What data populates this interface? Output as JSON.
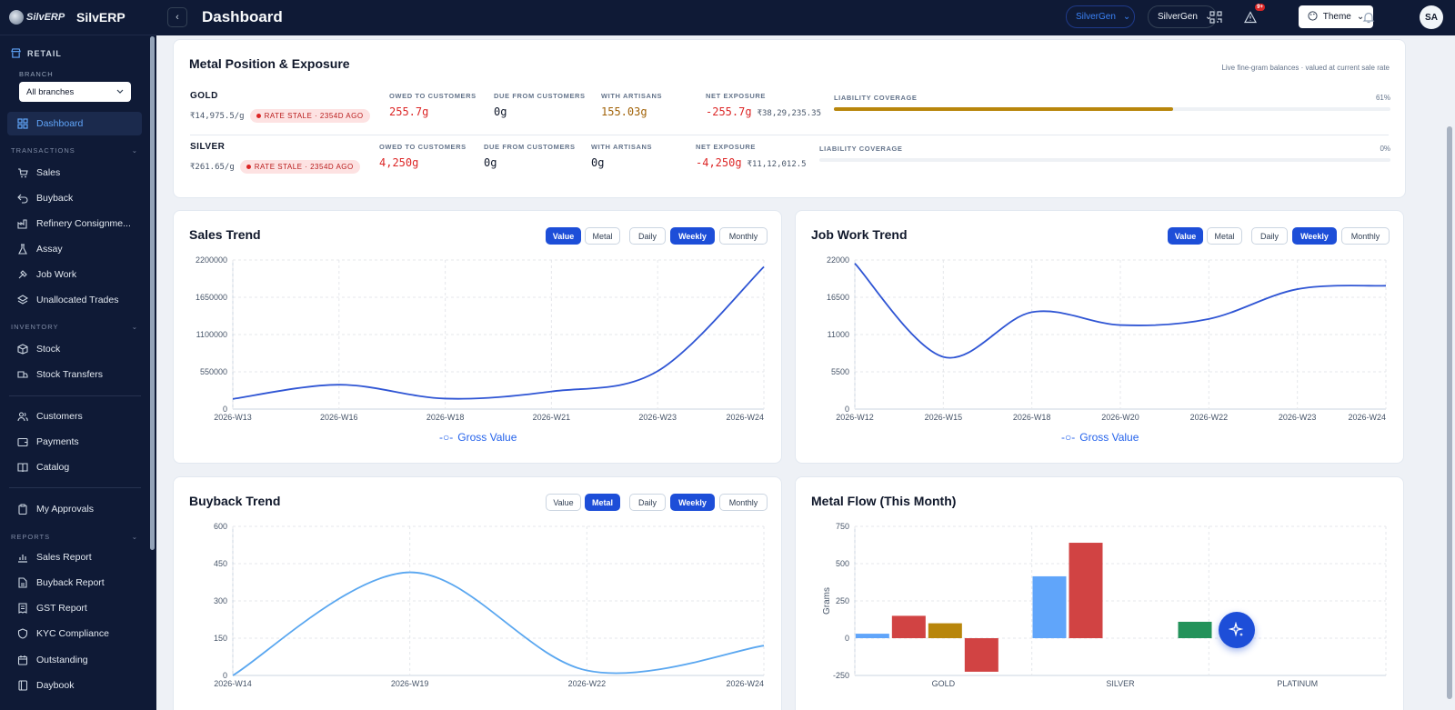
{
  "brand": {
    "logo_text": "SilvERP",
    "name": "SilvERP"
  },
  "header": {
    "title": "Dashboard",
    "org_switch": "SilverGen",
    "entity_switch": "SilverGen",
    "notif_count": "9+",
    "theme_label": "Theme",
    "avatar_initials": "SA"
  },
  "sidebar": {
    "retail_label": "RETAIL",
    "branch_label": "BRANCH",
    "branch_value": "All branches",
    "sections": {
      "transactions": "TRANSACTIONS",
      "inventory": "INVENTORY",
      "reports": "REPORTS"
    },
    "items": {
      "dashboard": "Dashboard",
      "sales": "Sales",
      "buyback": "Buyback",
      "refinery": "Refinery Consignme...",
      "assay": "Assay",
      "jobwork": "Job Work",
      "unallocated": "Unallocated Trades",
      "stock": "Stock",
      "transfers": "Stock Transfers",
      "customers": "Customers",
      "payments": "Payments",
      "catalog": "Catalog",
      "approvals": "My Approvals",
      "sales_report": "Sales Report",
      "buyback_report": "Buyback Report",
      "gst_report": "GST Report",
      "kyc": "KYC Compliance",
      "outstanding": "Outstanding",
      "daybook": "Daybook"
    }
  },
  "metal": {
    "title": "Metal Position & Exposure",
    "subtitle": "Live fine-gram balances · valued at current sale rate",
    "labels": {
      "owed": "OWED TO CUSTOMERS",
      "due": "DUE FROM CUSTOMERS",
      "artisans": "WITH ARTISANS",
      "net": "NET EXPOSURE",
      "coverage": "LIABILITY COVERAGE"
    },
    "rows": [
      {
        "name": "GOLD",
        "rate": "₹14,975.5/g",
        "stale": "RATE STALE · 2354D AGO",
        "owed": "255.7g",
        "due": "0g",
        "artisans": "155.03g",
        "net": "-255.7g",
        "net_value": "₹38,29,235.35",
        "coverage_pct": "61%",
        "coverage": 0.61
      },
      {
        "name": "SILVER",
        "rate": "₹261.65/g",
        "stale": "RATE STALE · 2354D AGO",
        "owed": "4,250g",
        "due": "0g",
        "artisans": "0g",
        "net": "-4,250g",
        "net_value": "₹11,12,012.5",
        "coverage_pct": "0%",
        "coverage": 0
      }
    ]
  },
  "toggles": {
    "value": "Value",
    "metal": "Metal",
    "daily": "Daily",
    "weekly": "Weekly",
    "monthly": "Monthly"
  },
  "chart_data": [
    {
      "type": "line",
      "title": "Sales Trend",
      "x_labels": [
        "2026-W13",
        "2026-W16",
        "2026-W18",
        "2026-W21",
        "2026-W23",
        "2026-W24"
      ],
      "y_ticks": [
        "0",
        "550000",
        "1100000",
        "1650000",
        "2200000"
      ],
      "ylim": [
        0,
        2200000
      ],
      "series": [
        {
          "name": "Gross Value",
          "values": [
            150000,
            360000,
            155000,
            260000,
            560000,
            2100000
          ]
        }
      ],
      "legend": "bottom",
      "grid": true,
      "color": "#2f55d4"
    },
    {
      "type": "line",
      "title": "Job Work Trend",
      "x_labels": [
        "2026-W12",
        "2026-W15",
        "2026-W18",
        "2026-W20",
        "2026-W22",
        "2026-W23",
        "2026-W24"
      ],
      "y_ticks": [
        "0",
        "5500",
        "11000",
        "16500",
        "22000"
      ],
      "ylim": [
        0,
        22000
      ],
      "series": [
        {
          "name": "Gross Value",
          "values": [
            21500,
            7700,
            14300,
            12400,
            13300,
            17700,
            18200
          ]
        }
      ],
      "legend": "bottom",
      "grid": true,
      "color": "#2f55d4"
    },
    {
      "type": "line",
      "title": "Buyback Trend",
      "x_labels": [
        "2026-W14",
        "2026-W19",
        "2026-W22",
        "2026-W24"
      ],
      "y_ticks": [
        "0",
        "150",
        "300",
        "450",
        "600"
      ],
      "ylim": [
        0,
        600
      ],
      "series": [
        {
          "name": "",
          "values": [
            0,
            415,
            20,
            120
          ]
        }
      ],
      "grid": true,
      "color": "#5aa7f0"
    },
    {
      "type": "bar",
      "title": "Metal Flow (This Month)",
      "ylabel": "Grams",
      "categories": [
        "GOLD",
        "SILVER",
        "PLATINUM"
      ],
      "y_ticks": [
        "-250",
        "0",
        "250",
        "500",
        "750"
      ],
      "ylim": [
        -250,
        750
      ],
      "series": [
        {
          "color": "#60a5fa",
          "values": [
            30,
            415,
            0
          ]
        },
        {
          "color": "#d14343",
          "values": [
            150,
            640,
            0
          ]
        },
        {
          "color": "#b8860b",
          "values": [
            100,
            0,
            0
          ]
        },
        {
          "color": "#d14343",
          "values": [
            -225,
            0,
            0
          ]
        },
        {
          "color": "#23925a",
          "values": [
            0,
            110,
            0
          ]
        }
      ],
      "grid": true
    }
  ]
}
